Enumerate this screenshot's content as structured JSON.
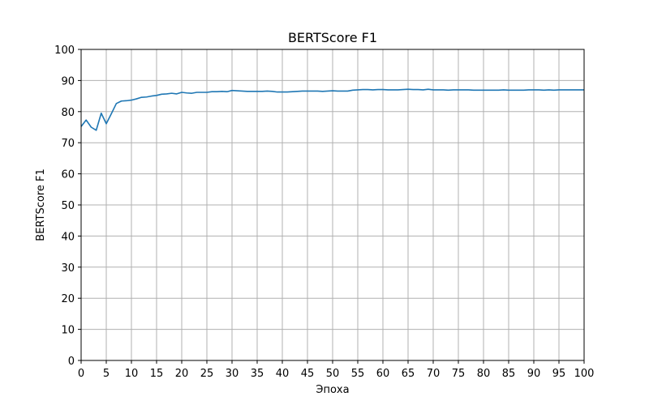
{
  "chart_data": {
    "type": "line",
    "title": "BERTScore F1",
    "xlabel": "Эпоха",
    "ylabel": "BERTScore F1",
    "xlim": [
      0,
      100
    ],
    "ylim": [
      0,
      100
    ],
    "xticks": [
      0,
      5,
      10,
      15,
      20,
      25,
      30,
      35,
      40,
      45,
      50,
      55,
      60,
      65,
      70,
      75,
      80,
      85,
      90,
      95,
      100
    ],
    "yticks": [
      0,
      10,
      20,
      30,
      40,
      50,
      60,
      70,
      80,
      90,
      100
    ],
    "grid": true,
    "series": [
      {
        "color": "#1f77b4",
        "x": [
          0,
          1,
          2,
          3,
          4,
          5,
          6,
          7,
          8,
          9,
          10,
          11,
          12,
          13,
          14,
          15,
          16,
          17,
          18,
          19,
          20,
          21,
          22,
          23,
          24,
          25,
          26,
          27,
          28,
          29,
          30,
          31,
          32,
          33,
          34,
          35,
          36,
          37,
          38,
          39,
          40,
          41,
          42,
          43,
          44,
          45,
          46,
          47,
          48,
          49,
          50,
          51,
          52,
          53,
          54,
          55,
          56,
          57,
          58,
          59,
          60,
          61,
          62,
          63,
          64,
          65,
          66,
          67,
          68,
          69,
          70,
          71,
          72,
          73,
          74,
          75,
          76,
          77,
          78,
          79,
          80,
          81,
          82,
          83,
          84,
          85,
          86,
          87,
          88,
          89,
          90,
          91,
          92,
          93,
          94,
          95,
          96,
          97,
          98,
          99,
          100
        ],
        "y": [
          75.2,
          77.3,
          75.0,
          74.0,
          79.5,
          76.1,
          79.3,
          82.6,
          83.4,
          83.5,
          83.7,
          84.1,
          84.6,
          84.7,
          85.0,
          85.2,
          85.6,
          85.7,
          85.9,
          85.7,
          86.2,
          86.0,
          85.9,
          86.2,
          86.2,
          86.2,
          86.4,
          86.4,
          86.5,
          86.4,
          86.8,
          86.7,
          86.6,
          86.5,
          86.5,
          86.5,
          86.5,
          86.6,
          86.5,
          86.3,
          86.3,
          86.3,
          86.4,
          86.5,
          86.6,
          86.6,
          86.6,
          86.6,
          86.5,
          86.6,
          86.7,
          86.6,
          86.6,
          86.6,
          86.9,
          87.0,
          87.1,
          87.1,
          87.0,
          87.1,
          87.1,
          87.0,
          87.0,
          87.0,
          87.1,
          87.2,
          87.1,
          87.1,
          87.0,
          87.2,
          87.0,
          87.0,
          87.0,
          86.9,
          87.0,
          87.0,
          87.0,
          87.0,
          86.9,
          86.9,
          86.9,
          86.9,
          86.9,
          86.9,
          87.0,
          86.9,
          86.9,
          86.9,
          86.9,
          87.0,
          87.0,
          87.0,
          86.9,
          87.0,
          86.9,
          87.0,
          87.0,
          87.0,
          87.0,
          87.0,
          87.0
        ]
      }
    ]
  }
}
